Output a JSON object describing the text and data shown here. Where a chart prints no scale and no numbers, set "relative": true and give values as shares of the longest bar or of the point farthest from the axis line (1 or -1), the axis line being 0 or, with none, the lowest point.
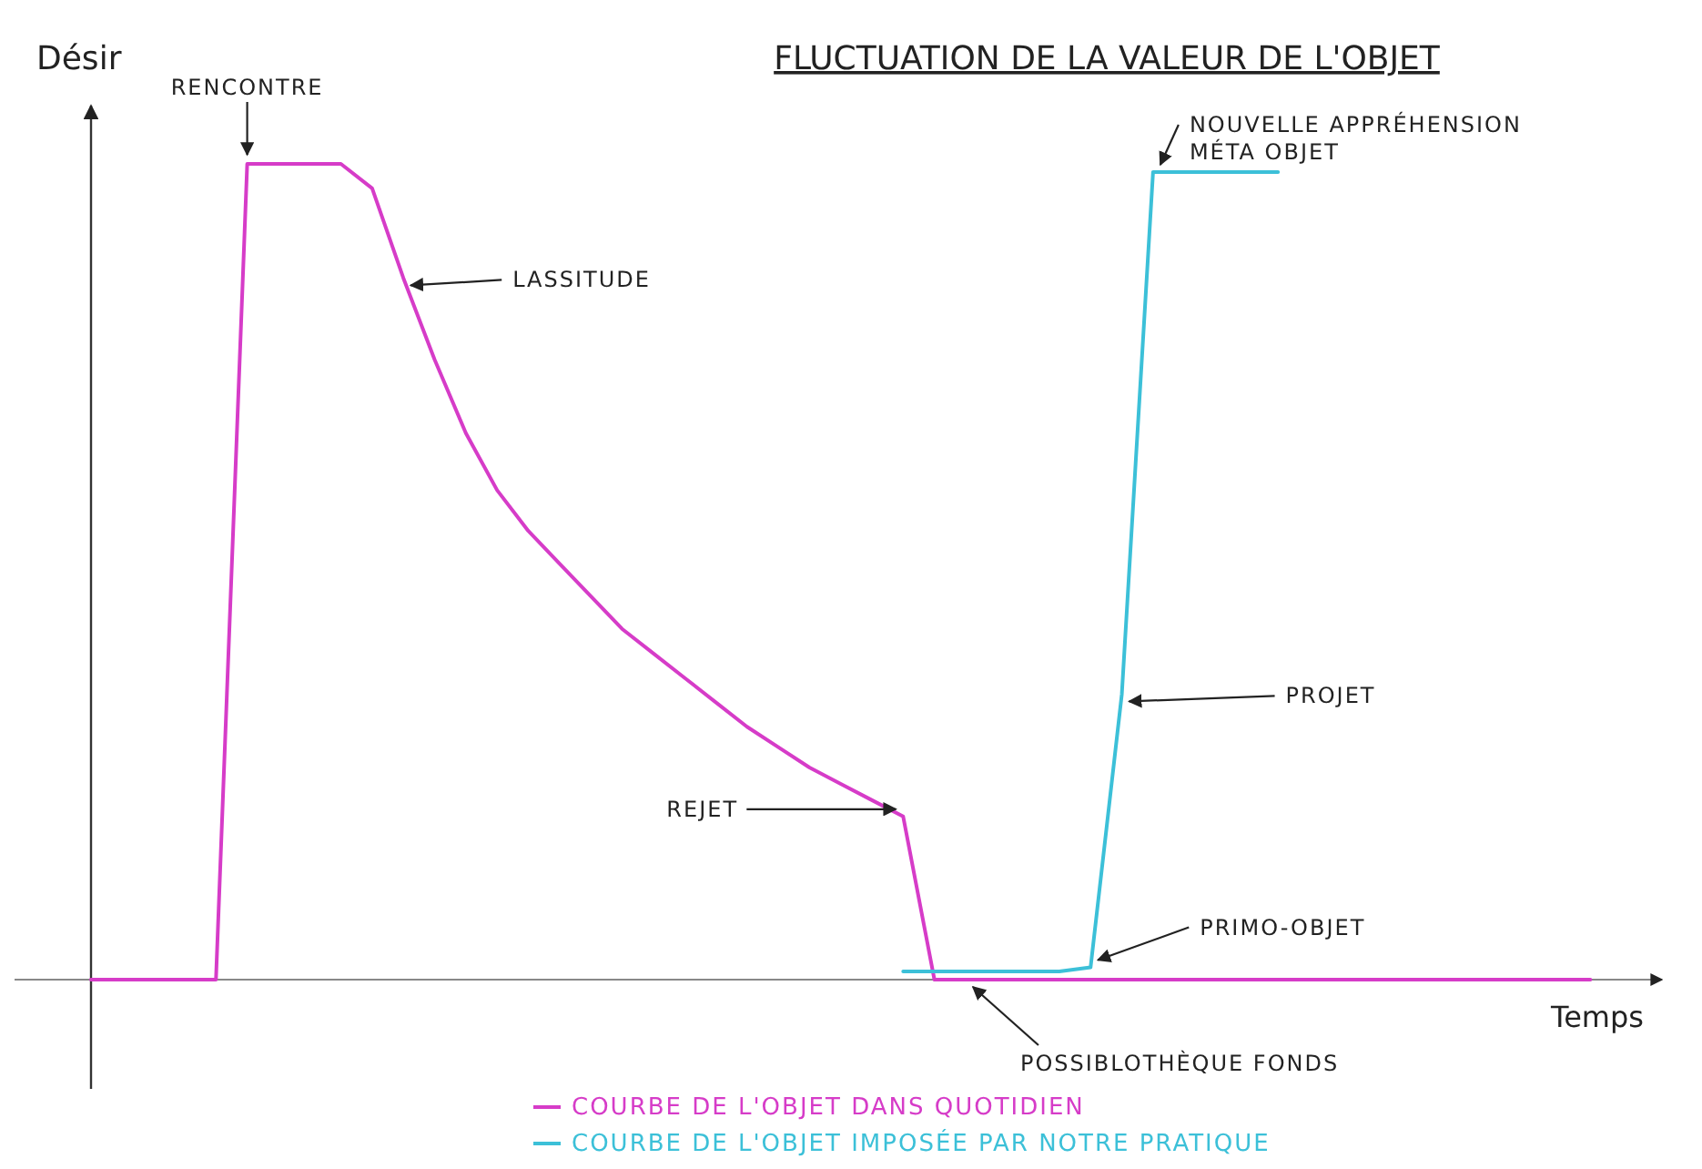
{
  "chart_data": {
    "type": "line",
    "title": "FLUCTUATION DE LA VALEUR DE L'OBJET",
    "xlabel": "Temps",
    "ylabel": "Désir",
    "relative": true,
    "legend": "bottom",
    "line_style": "solid",
    "categories": [
      null,
      null,
      null,
      null,
      null,
      null,
      null,
      null,
      null,
      null,
      null,
      null,
      null,
      null,
      null,
      null,
      null,
      null,
      null,
      null,
      null,
      null,
      null,
      null,
      null,
      null,
      null,
      null,
      null,
      null,
      null,
      null,
      null,
      null,
      null,
      null,
      null,
      null,
      null,
      null,
      null,
      null,
      null,
      null,
      null,
      null,
      null,
      null,
      null,
      null,
      null
    ],
    "series": [
      {
        "name": "COURBE DE L'OBJET DANS QUOTIDIEN",
        "color": "#d63cc8",
        "values": [
          0,
          0,
          0,
          0,
          0,
          1,
          1,
          1,
          1,
          0.97,
          0.86,
          0.76,
          0.67,
          0.6,
          0.55,
          0.51,
          0.47,
          0.43,
          0.4,
          0.37,
          0.34,
          0.31,
          0.285,
          0.26,
          0.24,
          0.22,
          0.2,
          0,
          0,
          0,
          0,
          0,
          0,
          0,
          0,
          0,
          0,
          0,
          0,
          0,
          0,
          0,
          0,
          0,
          0,
          0,
          0,
          0,
          0,
          null,
          null
        ]
      },
      {
        "name": "COURBE DE L'OBJET IMPOSÉE PAR NOTRE PRATIQUE",
        "color": "#3cc0d8",
        "values": [
          null,
          null,
          null,
          null,
          null,
          null,
          null,
          null,
          null,
          null,
          null,
          null,
          null,
          null,
          null,
          null,
          null,
          null,
          null,
          null,
          null,
          null,
          null,
          null,
          null,
          null,
          0.01,
          0.01,
          0.01,
          0.01,
          0.01,
          0.01,
          0.015,
          0.35,
          0.99,
          0.99,
          0.99,
          0.99,
          0.99,
          null,
          null,
          null,
          null,
          null,
          null,
          null,
          null,
          null,
          null,
          null,
          null
        ]
      }
    ],
    "annotations": [
      "RENCONTRE",
      "LASSITUDE",
      "REJET",
      "POSSIBLOTHÈQUE FONDS",
      "PRIMO-OBJET",
      "PROJET",
      "NOUVELLE APPRÉHENSION MÉTA OBJET"
    ]
  }
}
